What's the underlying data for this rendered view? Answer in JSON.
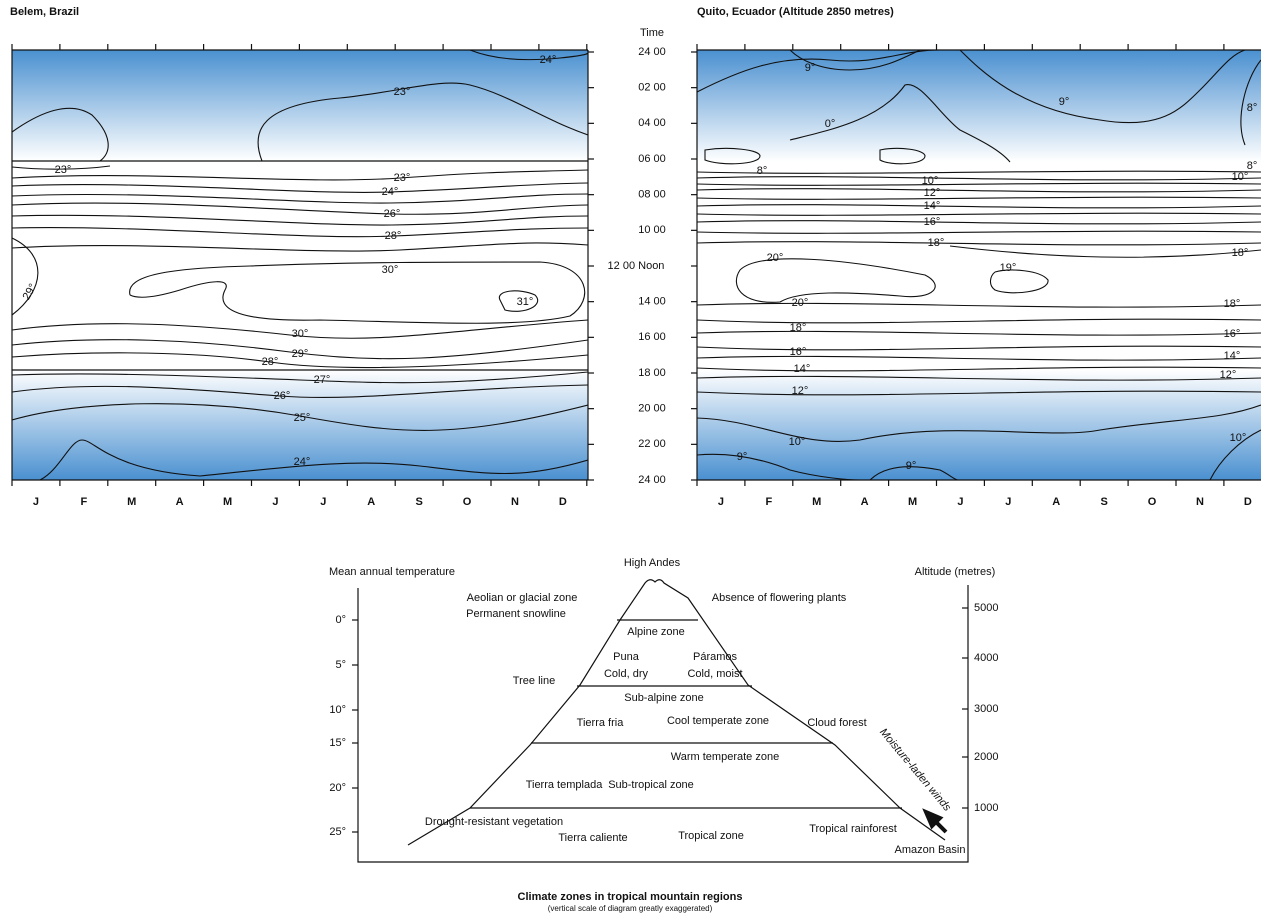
{
  "panels": [
    {
      "title": "Belem, Brazil",
      "months": [
        "J",
        "F",
        "M",
        "A",
        "M",
        "J",
        "J",
        "A",
        "S",
        "O",
        "N",
        "D"
      ],
      "contour_labels": [
        "24°",
        "23°",
        "23°",
        "23°",
        "24°",
        "26°",
        "28°",
        "30°",
        "31°",
        "29°",
        "30°",
        "29°",
        "28°",
        "27°",
        "26°",
        "25°",
        "24°"
      ]
    },
    {
      "title": "Quito, Ecuador (Altitude 2850 metres)",
      "months": [
        "J",
        "F",
        "M",
        "A",
        "M",
        "J",
        "J",
        "A",
        "S",
        "O",
        "N",
        "D"
      ],
      "contour_labels": [
        "9°",
        "0°",
        "9°",
        "8°",
        "8°",
        "8°",
        "10°",
        "10°",
        "12°",
        "14°",
        "16°",
        "18°",
        "18°",
        "20°",
        "19°",
        "20°",
        "18°",
        "18°",
        "16°",
        "16°",
        "14°",
        "14°",
        "12°",
        "12°",
        "10°",
        "10°",
        "9°",
        "9°"
      ]
    }
  ],
  "time_axis": {
    "title": "Time",
    "labels": [
      "24 00",
      "02 00",
      "04 00",
      "06 00",
      "08 00",
      "10 00",
      "12 00 Noon",
      "14 00",
      "16 00",
      "18 00",
      "20 00",
      "22 00",
      "24 00"
    ]
  },
  "zones_diagram": {
    "left_axis_title": "Mean annual temperature",
    "left_ticks": [
      "0°",
      "5°",
      "10°",
      "15°",
      "20°",
      "25°"
    ],
    "right_axis_title": "Altitude (metres)",
    "right_ticks": [
      "5000",
      "4000",
      "3000",
      "2000",
      "1000"
    ],
    "peak_label": "High Andes",
    "labels": [
      "Aeolian or glacial zone",
      "Permanent snowline",
      "Absence of flowering plants",
      "Alpine zone",
      "Puna",
      "Cold, dry",
      "Páramos",
      "Cold, moist",
      "Tree line",
      "Sub-alpine zone",
      "Tierra fria",
      "Cool temperate zone",
      "Cloud forest",
      "Warm temperate zone",
      "Tierra templada",
      "Sub-tropical zone",
      "Drought-resistant vegetation",
      "Tierra caliente",
      "Tropical zone",
      "Tropical rainforest",
      "Amazon Basin",
      "Moisture-laden winds"
    ],
    "caption": "Climate zones in tropical mountain regions",
    "subcaption": "(vertical scale of diagram greatly exaggerated)"
  }
}
